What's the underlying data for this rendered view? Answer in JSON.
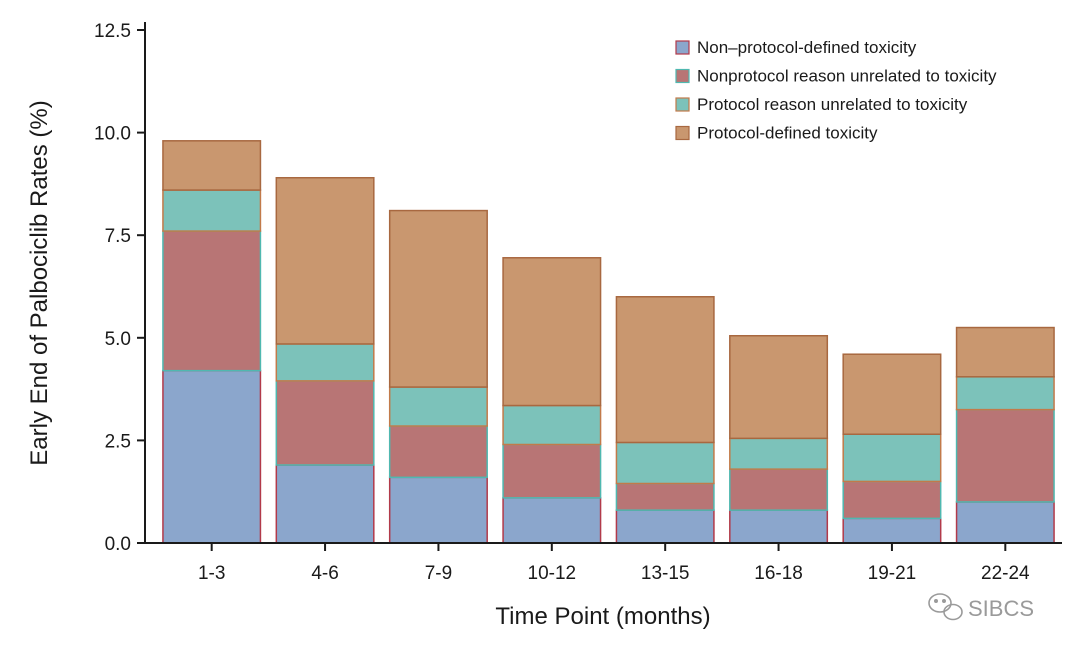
{
  "chart_data": {
    "type": "bar",
    "stacked": true,
    "xlabel": "Time Point (months)",
    "ylabel": "Early End of Palbociclib Rates (%)",
    "ylim": [
      0,
      12.5
    ],
    "yticks": [
      0,
      2.5,
      5,
      7.5,
      10,
      12.5
    ],
    "ytick_labels": [
      "0.0",
      "2.5",
      "5.0",
      "7.5",
      "10.0",
      "12.5"
    ],
    "categories": [
      "1-3",
      "4-6",
      "7-9",
      "10-12",
      "13-15",
      "16-18",
      "19-21",
      "22-24"
    ],
    "series": [
      {
        "name": "Non–protocol-defined toxicity",
        "color": "#8ba6cc",
        "edge": "#b23a4a",
        "values": [
          4.2,
          1.9,
          1.6,
          1.1,
          0.8,
          0.8,
          0.6,
          1.0
        ]
      },
      {
        "name": "Nonprotocol reason unrelated to toxicity",
        "color": "#b87575",
        "edge": "#4fb8b0",
        "values": [
          3.4,
          2.05,
          1.25,
          1.3,
          0.65,
          1.0,
          0.9,
          2.25
        ]
      },
      {
        "name": "Protocol reason unrelated to toxicity",
        "color": "#7cc2ba",
        "edge": "#c27a4a",
        "values": [
          1.0,
          0.9,
          0.95,
          0.95,
          1.0,
          0.75,
          1.15,
          0.8
        ]
      },
      {
        "name": "Protocol-defined toxicity",
        "color": "#c9976f",
        "edge": "#a86840",
        "values": [
          1.2,
          4.05,
          4.3,
          3.6,
          3.55,
          2.5,
          1.95,
          1.2
        ]
      }
    ],
    "grid": false,
    "legend_position": "top-right"
  },
  "watermark": {
    "text": "SIBCS",
    "icon": "wechat-icon"
  }
}
